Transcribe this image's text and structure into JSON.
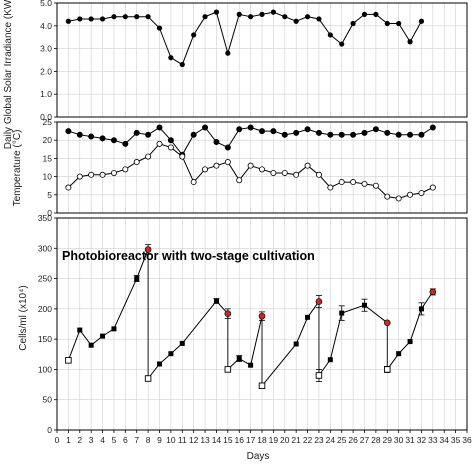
{
  "chart_data": [
    {
      "type": "line",
      "ylabel": "Daily Global Solar Irradiance (KWh.m-2)",
      "ylim": [
        0,
        5
      ],
      "yticks": [
        "0.0",
        "1.0",
        "2.0",
        "3.0",
        "4.0",
        "5.0"
      ],
      "grid": true,
      "series": [
        {
          "marker": "filled-circle",
          "x": [
            1,
            2,
            3,
            4,
            5,
            6,
            7,
            8,
            9,
            10,
            11,
            12,
            13,
            14,
            15,
            16,
            17,
            18,
            19,
            20,
            21,
            22,
            23,
            24,
            25,
            26,
            27,
            28,
            29,
            30,
            31,
            32,
            33
          ],
          "y": [
            4.2,
            4.3,
            4.3,
            4.3,
            4.4,
            4.4,
            4.4,
            4.4,
            3.9,
            2.6,
            2.3,
            3.6,
            4.4,
            4.6,
            2.8,
            4.5,
            4.4,
            4.5,
            4.6,
            4.4,
            4.2,
            4.4,
            4.3,
            3.6,
            3.2,
            4.1,
            4.5,
            4.5,
            4.1,
            4.1,
            3.3,
            4.2,
            null
          ]
        }
      ]
    },
    {
      "type": "line",
      "ylabel": "Temperature (°C)",
      "ylim": [
        0,
        25
      ],
      "yticks": [
        "0",
        "5",
        "10",
        "15",
        "20",
        "25"
      ],
      "grid": true,
      "series": [
        {
          "marker": "filled-circle",
          "x": [
            1,
            2,
            3,
            4,
            5,
            6,
            7,
            8,
            9,
            10,
            11,
            12,
            13,
            14,
            15,
            16,
            17,
            18,
            19,
            20,
            21,
            22,
            23,
            24,
            25,
            26,
            27,
            28,
            29,
            30,
            31,
            32,
            33
          ],
          "y": [
            22.5,
            21.5,
            21,
            20.5,
            20,
            19,
            22,
            21.5,
            23.5,
            20,
            16,
            21.5,
            23.5,
            19.5,
            18,
            23,
            23.5,
            22.5,
            22.5,
            21.5,
            22,
            23,
            22,
            21.5,
            21.5,
            21.5,
            22,
            23,
            22,
            21.5,
            21.5,
            21.5,
            23.5
          ]
        },
        {
          "marker": "open-circle",
          "x": [
            1,
            2,
            3,
            4,
            5,
            6,
            7,
            8,
            9,
            10,
            11,
            12,
            13,
            14,
            15,
            16,
            17,
            18,
            19,
            20,
            21,
            22,
            23,
            24,
            25,
            26,
            27,
            28,
            29,
            30,
            31,
            32,
            33
          ],
          "y": [
            7,
            10,
            10.5,
            10.5,
            11,
            12,
            14,
            15.5,
            19,
            18,
            15.5,
            8.5,
            12,
            13,
            14,
            9,
            13,
            12,
            11,
            11,
            10.5,
            13,
            10.5,
            7,
            8.5,
            8.5,
            8,
            7.5,
            4.5,
            4,
            5,
            5.5,
            7
          ]
        }
      ]
    },
    {
      "type": "scatter",
      "title": "Photobioreactor with two-stage cultivation",
      "xlabel": "Days",
      "ylabel": "Cells/ml (x10⁴)",
      "ylim": [
        0,
        350
      ],
      "xlim": [
        0,
        36
      ],
      "yticks": [
        "0",
        "50",
        "100",
        "150",
        "200",
        "250",
        "300",
        "350"
      ],
      "xticks": [
        "0",
        "1",
        "2",
        "3",
        "4",
        "5",
        "6",
        "7",
        "8",
        "9",
        "10",
        "11",
        "12",
        "13",
        "14",
        "15",
        "16",
        "17",
        "18",
        "19",
        "20",
        "21",
        "22",
        "23",
        "24",
        "25",
        "26",
        "27",
        "28",
        "29",
        "30",
        "31",
        "32",
        "33",
        "34",
        "35",
        "36"
      ],
      "grid": true,
      "segments": [
        {
          "x": [
            1,
            2,
            3,
            4,
            5,
            7,
            8
          ],
          "y": [
            115,
            165,
            140,
            155,
            167,
            250,
            298
          ]
        },
        {
          "x": [
            8,
            9,
            10,
            11,
            14,
            15
          ],
          "y": [
            85,
            109,
            126,
            143,
            213,
            192
          ]
        },
        {
          "x": [
            15,
            16,
            17,
            18
          ],
          "y": [
            100,
            118,
            107,
            188
          ]
        },
        {
          "x": [
            18,
            21,
            22,
            23
          ],
          "y": [
            73,
            142,
            186,
            212
          ]
        },
        {
          "x": [
            23,
            24,
            25,
            27,
            29
          ],
          "y": [
            90,
            116,
            193,
            206,
            177
          ]
        },
        {
          "x": [
            29,
            30,
            31,
            32,
            33
          ],
          "y": [
            100,
            126,
            146,
            200,
            228
          ]
        }
      ],
      "open_points": {
        "x": [
          1,
          8,
          15,
          18,
          23,
          29
        ],
        "y": [
          115,
          85,
          100,
          73,
          90,
          100
        ]
      },
      "red_points": {
        "x": [
          8,
          15,
          18,
          23,
          29,
          33
        ],
        "y": [
          298,
          192,
          188,
          212,
          177,
          228
        ]
      },
      "error_bars": [
        {
          "x": 8,
          "y": 298,
          "err": 8
        },
        {
          "x": 7,
          "y": 250,
          "err": 5
        },
        {
          "x": 14,
          "y": 213,
          "err": 4
        },
        {
          "x": 15,
          "y": 192,
          "err": 8
        },
        {
          "x": 18,
          "y": 188,
          "err": 7
        },
        {
          "x": 23,
          "y": 212,
          "err": 10
        },
        {
          "x": 23,
          "y": 90,
          "err": 10
        },
        {
          "x": 25,
          "y": 193,
          "err": 12
        },
        {
          "x": 27,
          "y": 206,
          "err": 10
        },
        {
          "x": 32,
          "y": 200,
          "err": 10
        },
        {
          "x": 33,
          "y": 228,
          "err": 5
        },
        {
          "x": 29,
          "y": 100,
          "err": 5
        },
        {
          "x": 16,
          "y": 118,
          "err": 5
        }
      ],
      "drops": [
        {
          "x": 8,
          "from": 298,
          "to": 85
        },
        {
          "x": 15,
          "from": 192,
          "to": 100
        },
        {
          "x": 18,
          "from": 188,
          "to": 73
        },
        {
          "x": 23,
          "from": 212,
          "to": 90
        },
        {
          "x": 29,
          "from": 177,
          "to": 100
        }
      ]
    }
  ]
}
